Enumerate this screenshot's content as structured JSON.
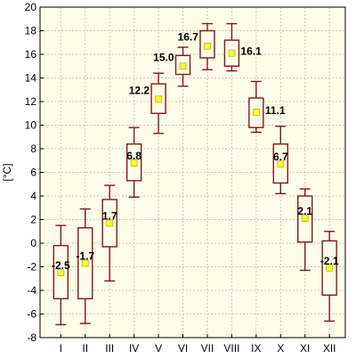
{
  "colors": {
    "plot_background": "#fdfde8",
    "grid": "#c8c8c8",
    "box_fill": "#fdfde8",
    "box_stroke": "#7b1a1a",
    "mean_marker": "#ffff33",
    "mean_marker_stroke": "#b8b800"
  },
  "chart_data": {
    "type": "box",
    "title": "",
    "xlabel": "",
    "ylabel": "[°C]",
    "ylim": [
      -8,
      20
    ],
    "yticks": [
      -8,
      -6,
      -4,
      -2,
      0,
      2,
      4,
      6,
      8,
      10,
      12,
      14,
      16,
      18,
      20
    ],
    "grid": true,
    "categories": [
      "I",
      "II",
      "III",
      "IV",
      "V",
      "VI",
      "VII",
      "VIII",
      "IX",
      "X",
      "XI",
      "XII"
    ],
    "mean_labels": [
      "-2.5",
      "-1.7",
      "1.7",
      "6.8",
      "12.2",
      "15.0",
      "16.7",
      "16.1",
      "11.1",
      "6.7",
      "2.1",
      "-2.1"
    ],
    "mean": [
      -2.5,
      -1.7,
      1.7,
      6.8,
      12.2,
      15.0,
      16.7,
      16.1,
      11.1,
      6.7,
      2.1,
      -2.1
    ],
    "q1": [
      -4.7,
      -4.7,
      -0.3,
      5.3,
      11.0,
      14.3,
      15.7,
      15.0,
      9.8,
      5.1,
      0.1,
      -4.4
    ],
    "q3": [
      -0.2,
      1.3,
      3.7,
      8.4,
      13.5,
      15.9,
      18.0,
      17.2,
      12.3,
      8.4,
      4.0,
      0.2
    ],
    "whisker_low": [
      -6.9,
      -6.8,
      -3.2,
      3.9,
      9.3,
      13.3,
      14.7,
      14.6,
      9.4,
      4.2,
      -2.3,
      -6.6
    ],
    "whisker_high": [
      1.5,
      2.9,
      4.9,
      9.8,
      14.4,
      16.6,
      18.6,
      18.6,
      13.7,
      9.9,
      4.6,
      1.0
    ]
  }
}
